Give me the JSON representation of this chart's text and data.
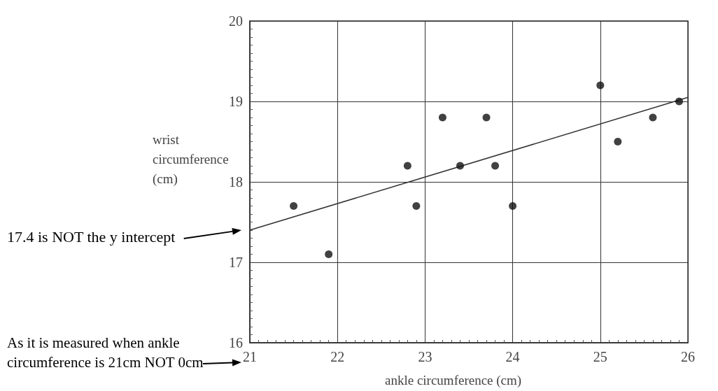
{
  "chart_data": {
    "type": "scatter",
    "xlabel": "ankle circumference (cm)",
    "ylabel": "wrist circumference (cm)",
    "xlim": [
      21,
      26
    ],
    "xticks": [
      21,
      22,
      23,
      24,
      25,
      26
    ],
    "ylim": [
      16,
      20
    ],
    "yticks": [
      16,
      17,
      18,
      19,
      20
    ],
    "grid": true,
    "marker": "circle",
    "series": [
      {
        "color": "#111111",
        "x": [
          21.5,
          21.9,
          22.8,
          22.9,
          23.2,
          23.4,
          23.7,
          23.8,
          24.0,
          25.0,
          25.2,
          25.6,
          25.9
        ],
        "values": [
          17.7,
          17.1,
          18.2,
          17.7,
          18.8,
          18.2,
          18.8,
          18.2,
          17.7,
          19.2,
          18.5,
          18.8,
          19.0
        ]
      },
      {
        "type": "line",
        "marker": "none",
        "color": "#333333",
        "x": [
          21,
          26
        ],
        "values": [
          17.4,
          19.05
        ]
      }
    ],
    "annotations": [
      "17.4 is NOT the y intercept",
      "As it is measured when ankle circumference is 21cm NOT 0cm"
    ]
  }
}
